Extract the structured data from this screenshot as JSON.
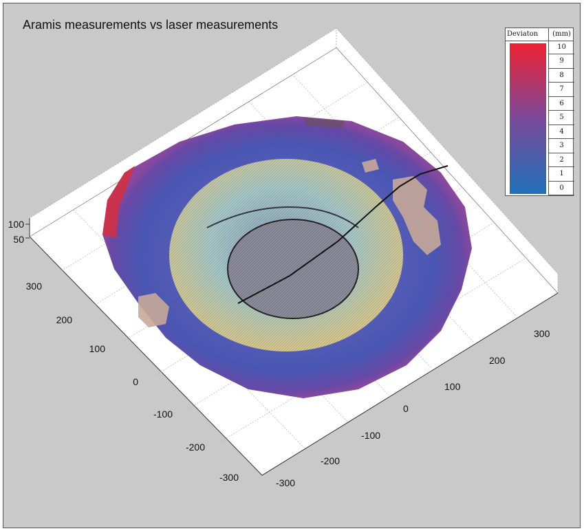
{
  "chart_data": {
    "type": "surface",
    "title": "Aramis measurements vs laser measurements",
    "x_ticks": [
      "-300",
      "-200",
      "-100",
      "0",
      "100",
      "200",
      "300"
    ],
    "y_ticks": [
      "300",
      "200",
      "100",
      "0",
      "-100",
      "-200",
      "-300"
    ],
    "z_ticks": [
      "100",
      "50"
    ],
    "xlim": [
      -300,
      300
    ],
    "ylim": [
      -300,
      300
    ],
    "zlim": [
      0,
      100
    ],
    "grid": true,
    "legend": {
      "title": "Deviaton",
      "unit": "(mm)",
      "placement": "top-right",
      "scale": [
        "10",
        "9",
        "8",
        "7",
        "6",
        "5",
        "4",
        "3",
        "2",
        "1",
        "0"
      ],
      "color_min": "#1f6fb8",
      "color_mid": "#7a4a9a",
      "color_max": "#ee2233"
    }
  }
}
